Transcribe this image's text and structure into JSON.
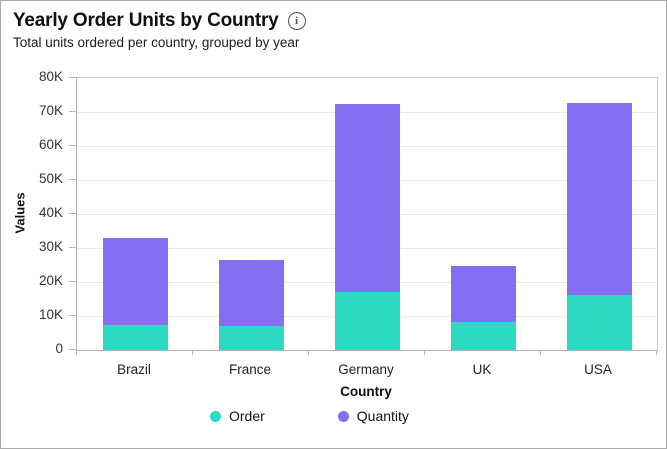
{
  "header": {
    "title": "Yearly Order Units by Country",
    "subtitle": "Total units ordered per country, grouped by year",
    "info_icon_glyph": "i"
  },
  "chart_data": {
    "type": "bar",
    "stacked": true,
    "title": "Yearly Order Units by Country",
    "subtitle": "Total units ordered per country, grouped by year",
    "categories": [
      "Brazil",
      "France",
      "Germany",
      "UK",
      "USA"
    ],
    "series": [
      {
        "name": "Order",
        "color": "#2ed9c3",
        "values": [
          7300,
          7000,
          17000,
          8200,
          16200
        ]
      },
      {
        "name": "Quantity",
        "color": "#836df0",
        "values": [
          25700,
          19600,
          55300,
          16600,
          56500
        ]
      }
    ],
    "xlabel": "Country",
    "ylabel": "Values",
    "ylim": [
      0,
      80000
    ],
    "yticks": [
      0,
      10000,
      20000,
      30000,
      40000,
      50000,
      60000,
      70000,
      80000
    ],
    "ytick_labels": [
      "0",
      "10K",
      "20K",
      "30K",
      "40K",
      "50K",
      "60K",
      "70K",
      "80K"
    ],
    "grid": "horizontal",
    "legend_position": "bottom"
  },
  "colors": {
    "order": "#2ed9c3",
    "quantity": "#836df0",
    "gridline": "#e9e9e9",
    "axis_line": "#b2b2b2"
  }
}
